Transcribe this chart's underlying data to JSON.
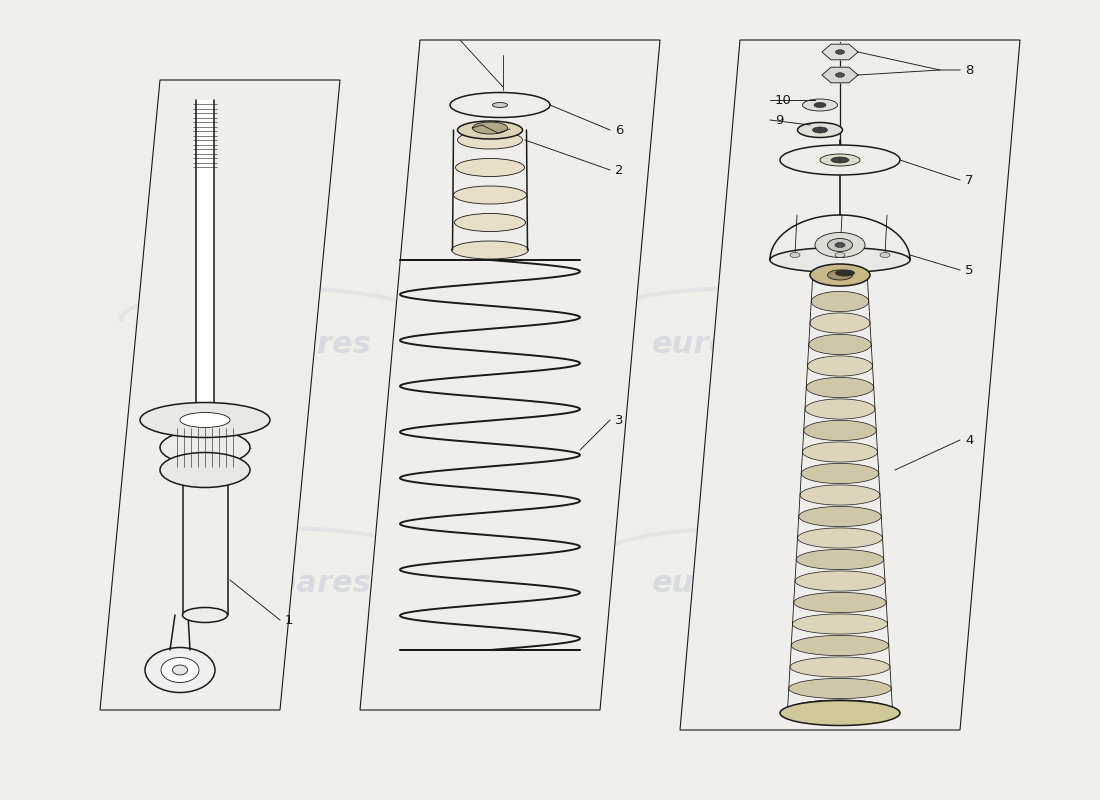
{
  "background_color": "#f0efea",
  "line_color": "#1a1a1a",
  "fig_width": 11.0,
  "fig_height": 8.0,
  "dpi": 100,
  "watermark_color": "#c5cdd8",
  "watermark_alpha": 0.55,
  "part_labels": [
    "1",
    "2",
    "3",
    "4",
    "5",
    "6",
    "7",
    "8",
    "9",
    "10"
  ],
  "xlim": [
    0,
    110
  ],
  "ylim": [
    0,
    80
  ]
}
